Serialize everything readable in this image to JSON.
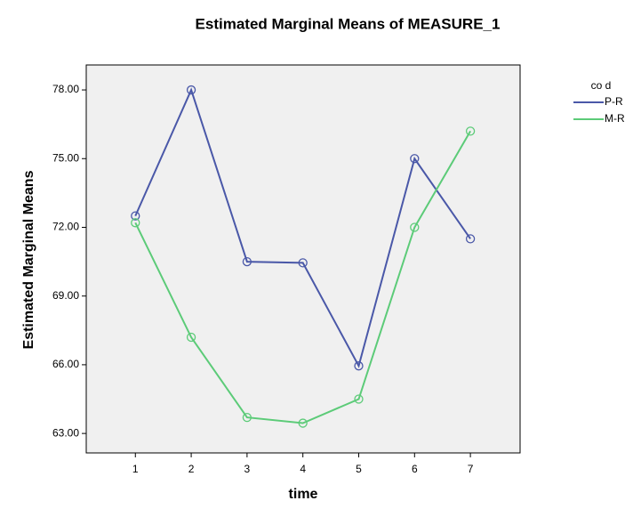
{
  "chart_data": {
    "type": "line",
    "title": "Estimated Marginal Means of MEASURE_1",
    "x_label": "time",
    "y_label": "Estimated Marginal Means",
    "x": [
      1,
      2,
      3,
      4,
      5,
      6,
      7
    ],
    "xlim": [
      0.12,
      7.89
    ],
    "xticks": [
      1,
      2,
      3,
      4,
      5,
      6,
      7
    ],
    "ylim": [
      62.15,
      79.09
    ],
    "yticks": [
      {
        "value": 63,
        "label": "63.00"
      },
      {
        "value": 66,
        "label": "66.00"
      },
      {
        "value": 69,
        "label": "69.00"
      },
      {
        "value": 72,
        "label": "72.00"
      },
      {
        "value": 75,
        "label": "75.00"
      },
      {
        "value": 78,
        "label": "78.00"
      }
    ],
    "legend_title": "co d",
    "legend_position": "outside-right",
    "series": [
      {
        "name": "P-R",
        "color": "#4a58a8",
        "values": [
          72.5,
          78.0,
          70.5,
          70.45,
          65.95,
          75.0,
          71.5
        ]
      },
      {
        "name": "M-R",
        "color": "#5ccb78",
        "values": [
          72.2,
          67.2,
          63.7,
          63.45,
          64.5,
          72.0,
          76.2
        ]
      }
    ]
  }
}
